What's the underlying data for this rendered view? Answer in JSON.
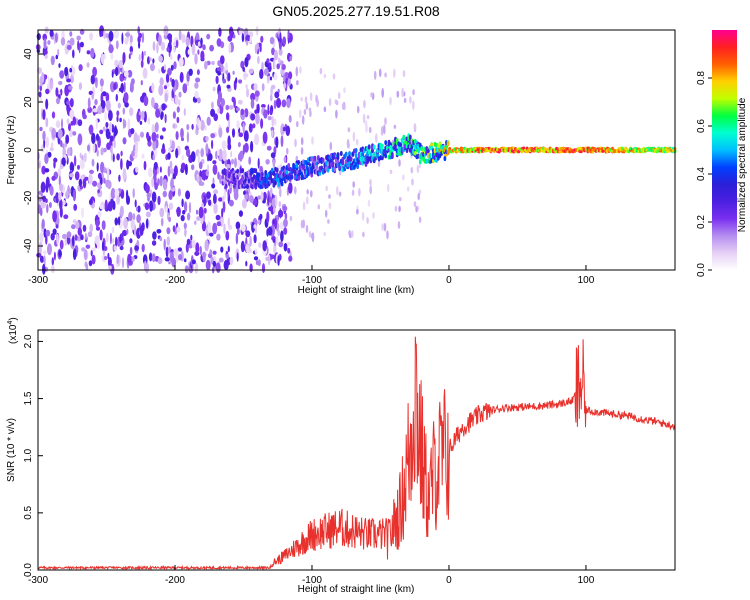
{
  "title": "GN05.2025.277.19.51.R08",
  "colors": {
    "snr_line": "#e8312c",
    "colormap": [
      "#ffffff",
      "#e6d0f6",
      "#b58df0",
      "#7a2ff0",
      "#4b1fe0",
      "#2b1fd8",
      "#0040ff",
      "#00c0ff",
      "#00ffd0",
      "#00ff40",
      "#c0ff00",
      "#ffd000",
      "#ff6000",
      "#ff2020",
      "#ff0090"
    ]
  },
  "chart_data": [
    {
      "type": "heatmap",
      "title": "GN05.2025.277.19.51.R08",
      "xlabel": "Height of straight line (km)",
      "ylabel": "Frequency (Hz)",
      "xlim": [
        -300,
        165
      ],
      "ylim": [
        -50,
        50
      ],
      "x_ticks": [
        "-300",
        "-200",
        "-100",
        "0",
        "100"
      ],
      "x_tick_values": [
        -300,
        -200,
        -100,
        0,
        100
      ],
      "y_ticks": [
        "-40",
        "-20",
        "0",
        "20",
        "40"
      ],
      "y_tick_values": [
        -40,
        -20,
        0,
        20,
        40
      ],
      "colorbar": {
        "label": "Normalized spectral amplitude",
        "range": [
          0,
          1
        ],
        "ticks": [
          "0.0",
          "0.2",
          "0.4",
          "0.6",
          "0.8"
        ],
        "tick_values": [
          0,
          0.2,
          0.4,
          0.6,
          0.8
        ]
      },
      "ridge": {
        "description_points": [
          {
            "x": -160,
            "freq": -12,
            "amp": 0.3
          },
          {
            "x": -130,
            "freq": -12,
            "amp": 0.45
          },
          {
            "x": -100,
            "freq": -7,
            "amp": 0.45
          },
          {
            "x": -70,
            "freq": -4,
            "amp": 0.5
          },
          {
            "x": -45,
            "freq": 0,
            "amp": 0.6
          },
          {
            "x": -30,
            "freq": 3,
            "amp": 0.6
          },
          {
            "x": -20,
            "freq": -2,
            "amp": 0.7
          },
          {
            "x": 0,
            "freq": 0,
            "amp": 0.85
          },
          {
            "x": 40,
            "freq": 0,
            "amp": 0.95
          },
          {
            "x": 100,
            "freq": 0,
            "amp": 0.95
          },
          {
            "x": 165,
            "freq": 0,
            "amp": 0.8
          }
        ]
      }
    },
    {
      "type": "line",
      "xlabel": "Height of straight line (km)",
      "ylabel": "SNR (10 * v/v)",
      "y_multiplier": "(x10",
      "y_multiplier_exp": "4",
      "xlim": [
        -300,
        165
      ],
      "ylim": [
        0,
        2.1
      ],
      "x_ticks": [
        "-300",
        "-200",
        "-100",
        "0",
        "100"
      ],
      "x_tick_values": [
        -300,
        -200,
        -100,
        0,
        100
      ],
      "y_ticks": [
        "0.0",
        "0.5",
        "1.0",
        "1.5",
        "2.0"
      ],
      "y_tick_values": [
        0,
        0.5,
        1.0,
        1.5,
        2.0
      ],
      "series": [
        {
          "envelope_points": [
            [
              -300,
              0.02
            ],
            [
              -200,
              0.03
            ],
            [
              -130,
              0.04
            ],
            [
              -120,
              0.1
            ],
            [
              -100,
              0.25
            ],
            [
              -80,
              0.3
            ],
            [
              -60,
              0.25
            ],
            [
              -45,
              0.25
            ],
            [
              -35,
              0.55
            ],
            [
              -28,
              1.1
            ],
            [
              -25,
              1.7
            ],
            [
              -20,
              1.0
            ],
            [
              -15,
              0.6
            ],
            [
              -10,
              0.9
            ],
            [
              0,
              1.05
            ],
            [
              10,
              1.25
            ],
            [
              25,
              1.38
            ],
            [
              40,
              1.42
            ],
            [
              60,
              1.43
            ],
            [
              80,
              1.45
            ],
            [
              90,
              1.48
            ],
            [
              97,
              1.65
            ],
            [
              100,
              1.4
            ],
            [
              110,
              1.38
            ],
            [
              130,
              1.35
            ],
            [
              150,
              1.3
            ],
            [
              165,
              1.26
            ]
          ]
        }
      ]
    }
  ]
}
